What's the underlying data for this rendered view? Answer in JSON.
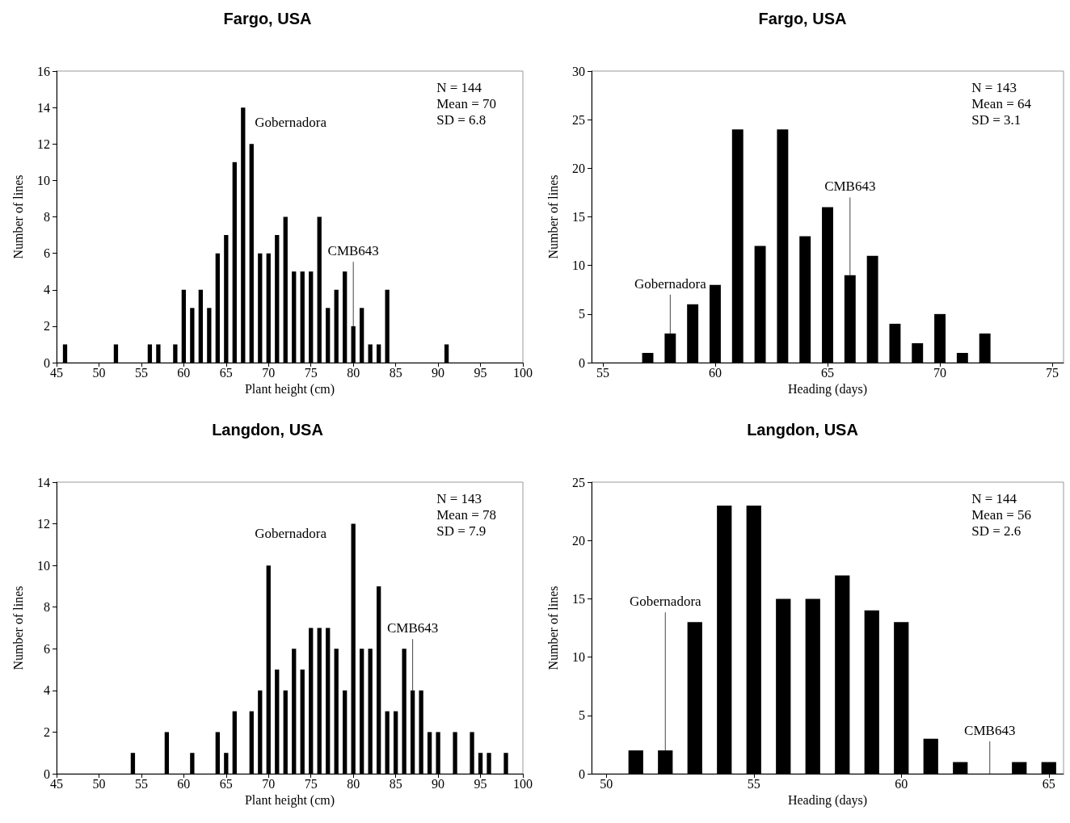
{
  "chart_data": [
    {
      "type": "bar",
      "title": "Fargo, USA",
      "xlabel": "Plant height (cm)",
      "ylabel": "Number of lines",
      "x": [
        46,
        52,
        56,
        57,
        59,
        60,
        61,
        62,
        63,
        64,
        65,
        66,
        67,
        68,
        69,
        70,
        71,
        72,
        73,
        74,
        75,
        76,
        77,
        78,
        79,
        80,
        81,
        82,
        83,
        84,
        91
      ],
      "values": [
        1,
        1,
        1,
        1,
        1,
        4,
        3,
        4,
        3,
        6,
        7,
        11,
        14,
        12,
        6,
        6,
        7,
        8,
        5,
        5,
        5,
        8,
        3,
        4,
        5,
        2,
        3,
        1,
        1,
        4,
        1
      ],
      "color": "#000000",
      "xlim": [
        45,
        100
      ],
      "xticks": [
        45,
        50,
        55,
        60,
        65,
        70,
        75,
        80,
        85,
        90,
        95,
        100
      ],
      "ylim": [
        0,
        16
      ],
      "yticks": [
        0,
        2,
        4,
        6,
        8,
        10,
        12,
        14,
        16
      ],
      "grid": false,
      "annotations": [
        "N = 144\nMean = 70\nSD = 6.8",
        "Gobernadora",
        {
          "text": "CMB643",
          "x": 80,
          "y": 2
        }
      ]
    },
    {
      "type": "bar",
      "title": "Fargo, USA",
      "xlabel": "Heading (days)",
      "ylabel": "Number of lines",
      "x": [
        57,
        58,
        59,
        60,
        61,
        62,
        63,
        64,
        65,
        66,
        67,
        68,
        69,
        70,
        71,
        72
      ],
      "values": [
        1,
        3,
        6,
        8,
        24,
        12,
        24,
        13,
        16,
        9,
        11,
        4,
        2,
        5,
        1,
        3
      ],
      "color": "#000000",
      "xlim": [
        54.5,
        75.5
      ],
      "xticks": [
        55,
        60,
        65,
        70,
        75
      ],
      "ylim": [
        0,
        30
      ],
      "yticks": [
        0,
        5,
        10,
        15,
        20,
        25,
        30
      ],
      "grid": false,
      "annotations": [
        "N = 143\nMean = 64\nSD = 3.1",
        {
          "text": "Gobernadora",
          "x": 58,
          "y": 3
        },
        {
          "text": "CMB643",
          "x": 66,
          "y": 9
        }
      ]
    },
    {
      "type": "bar",
      "title": "Langdon, USA",
      "xlabel": "Plant height (cm)",
      "ylabel": "Number of lines",
      "x": [
        54,
        58,
        61,
        64,
        65,
        66,
        68,
        69,
        70,
        71,
        72,
        73,
        74,
        75,
        76,
        77,
        78,
        79,
        80,
        81,
        82,
        83,
        84,
        85,
        86,
        87,
        88,
        89,
        90,
        92,
        94,
        95,
        96,
        98
      ],
      "values": [
        1,
        2,
        1,
        2,
        1,
        3,
        3,
        4,
        10,
        5,
        4,
        6,
        5,
        7,
        7,
        7,
        6,
        4,
        12,
        6,
        6,
        9,
        3,
        3,
        6,
        4,
        4,
        2,
        2,
        2,
        2,
        1,
        1,
        1
      ],
      "color": "#000000",
      "xlim": [
        45,
        100
      ],
      "xticks": [
        45,
        50,
        55,
        60,
        65,
        70,
        75,
        80,
        85,
        90,
        95,
        100
      ],
      "ylim": [
        0,
        14
      ],
      "yticks": [
        0,
        2,
        4,
        6,
        8,
        10,
        12,
        14
      ],
      "grid": false,
      "annotations": [
        "N = 143\nMean = 78\nSD = 7.9",
        "Gobernadora",
        {
          "text": "CMB643",
          "x": 87,
          "y": 4
        }
      ]
    },
    {
      "type": "bar",
      "title": "Langdon, USA",
      "xlabel": "Heading (days)",
      "ylabel": "Number of lines",
      "x": [
        51,
        52,
        53,
        54,
        55,
        56,
        57,
        58,
        59,
        60,
        61,
        62,
        64,
        65
      ],
      "values": [
        2,
        2,
        13,
        23,
        23,
        15,
        15,
        17,
        14,
        13,
        3,
        1,
        1,
        1
      ],
      "color": "#000000",
      "xlim": [
        49.5,
        65.5
      ],
      "xticks": [
        50,
        55,
        60,
        65
      ],
      "ylim": [
        0,
        25
      ],
      "yticks": [
        0,
        5,
        10,
        15,
        20,
        25
      ],
      "grid": false,
      "annotations": [
        "N = 144\nMean = 56\nSD = 2.6",
        {
          "text": "Gobernadora",
          "x": 52,
          "y": 2
        }
      ],
      "ref_lines": [
        {
          "axis": "x",
          "value": 63,
          "label": "CMB643"
        }
      ]
    }
  ]
}
